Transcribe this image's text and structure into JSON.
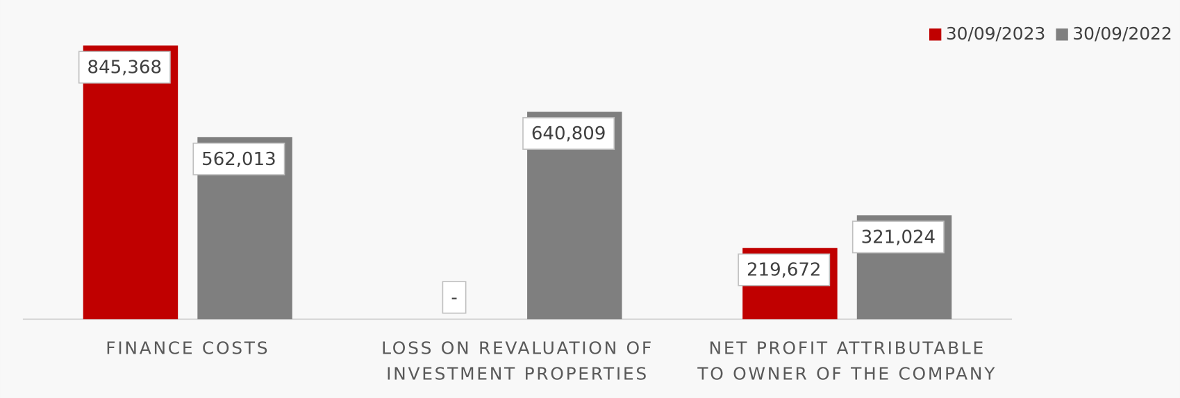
{
  "chart_data": {
    "type": "bar",
    "categories": [
      [
        "FINANCE COSTS"
      ],
      [
        "LOSS ON REVALUATION OF",
        "INVESTMENT PROPERTIES"
      ],
      [
        "NET PROFIT ATTRIBUTABLE",
        "TO OWNER OF THE COMPANY"
      ]
    ],
    "series": [
      {
        "name": "30/09/2023",
        "color": "#c00000",
        "values": [
          845368,
          0,
          219672
        ],
        "value_labels": [
          "845,368",
          "-",
          "219,672"
        ]
      },
      {
        "name": "30/09/2022",
        "color": "#7f7f7f",
        "values": [
          562013,
          640809,
          321024
        ],
        "value_labels": [
          "562,013",
          "640,809",
          "321,024"
        ]
      }
    ],
    "ylim": [
      0,
      900000
    ],
    "legend": "top-right"
  }
}
